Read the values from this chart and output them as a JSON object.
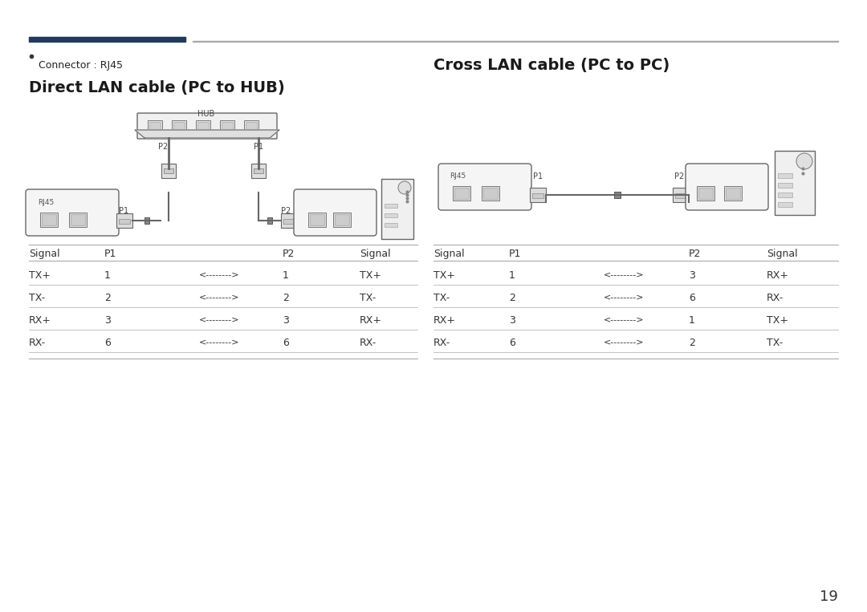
{
  "page_number": "19",
  "bg_color": "#ffffff",
  "header_bar_color1": "#1e3a5f",
  "header_bar_color2": "#aaaaaa",
  "bullet_text": "Connector : RJ45",
  "title_direct": "Direct LAN cable (PC to HUB)",
  "title_cross": "Cross LAN cable (PC to PC)",
  "direct_table_rows": [
    [
      "TX+",
      "1",
      "<-------->",
      "1",
      "TX+"
    ],
    [
      "TX-",
      "2",
      "<-------->",
      "2",
      "TX-"
    ],
    [
      "RX+",
      "3",
      "<-------->",
      "3",
      "RX+"
    ],
    [
      "RX-",
      "6",
      "<-------->",
      "6",
      "RX-"
    ]
  ],
  "cross_table_rows": [
    [
      "TX+",
      "1",
      "<-------->",
      "3",
      "RX+"
    ],
    [
      "TX-",
      "2",
      "<-------->",
      "6",
      "RX-"
    ],
    [
      "RX+",
      "3",
      "<-------->",
      "1",
      "TX+"
    ],
    [
      "RX-",
      "6",
      "<-------->",
      "2",
      "TX-"
    ]
  ]
}
